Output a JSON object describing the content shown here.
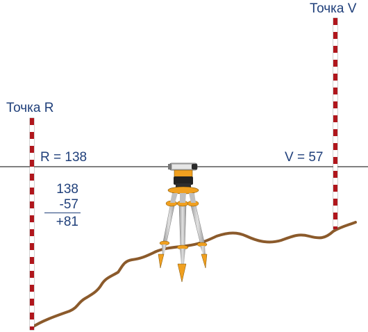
{
  "points": {
    "r_label": "Точка R",
    "v_label": "Точка V"
  },
  "readings": {
    "r": "R = 138",
    "v": "V = 57"
  },
  "calculation": {
    "line1": "138",
    "line2": "-57",
    "line3": "+81"
  },
  "colors": {
    "text": "#1f3f7a",
    "ground": "#8b5a2b",
    "rod_red": "#b0161c",
    "tripod_orange": "#f0a020",
    "tripod_leg": "#c8c8c8"
  }
}
